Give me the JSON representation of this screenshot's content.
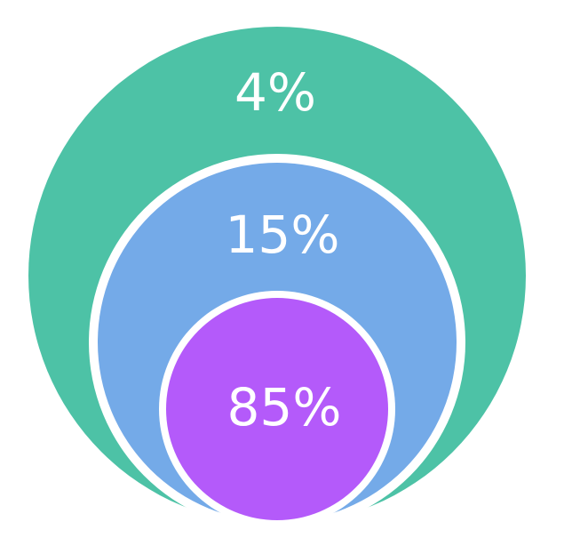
{
  "diagram": {
    "rings": [
      {
        "label": "4%",
        "value": 4,
        "color": "#4DC2A6"
      },
      {
        "label": "15%",
        "value": 15,
        "color": "#74AAE8"
      },
      {
        "label": "85%",
        "value": 85,
        "color": "#B45AFA"
      }
    ],
    "separator_color": "#ffffff",
    "background": "#ffffff"
  }
}
